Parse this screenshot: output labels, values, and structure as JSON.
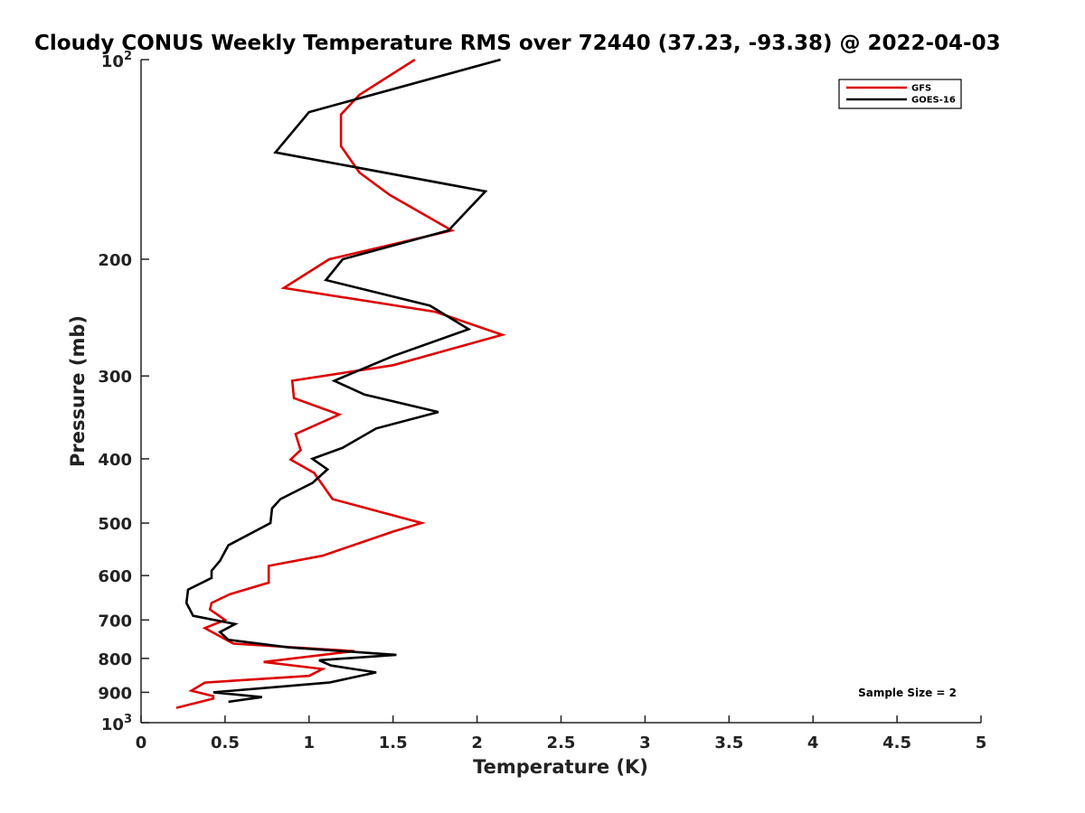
{
  "chart_data": {
    "type": "line",
    "title": "Cloudy CONUS Weekly Temperature RMS over 72440 (37.23, -93.38) @ 2022-04-03",
    "xlabel": "Temperature (K)",
    "ylabel": "Pressure (mb)",
    "xlim": [
      0,
      5
    ],
    "ylim": [
      1000,
      100
    ],
    "y_scale": "log",
    "y_reversed": true,
    "x_ticks": [
      0,
      0.5,
      1,
      1.5,
      2,
      2.5,
      3,
      3.5,
      4,
      4.5,
      5
    ],
    "x_tick_labels": [
      "0",
      "0.5",
      "1",
      "1.5",
      "2",
      "2.5",
      "3",
      "3.5",
      "4",
      "4.5",
      "5"
    ],
    "y_ticks": [
      200,
      300,
      400,
      500,
      600,
      700,
      800,
      900
    ],
    "y_tick_labels": [
      "200",
      "300",
      "400",
      "500",
      "600",
      "700",
      "800",
      "900"
    ],
    "y_exp_ticks": [
      {
        "value": 100,
        "base": "10",
        "exp": "2"
      },
      {
        "value": 1000,
        "base": "10",
        "exp": "3"
      }
    ],
    "grid": false,
    "legend_position": "top-right",
    "annotation": "Sample Size = 2",
    "series": [
      {
        "name": "GFS",
        "color": "#dd0000",
        "points": [
          [
            1.63,
            100
          ],
          [
            1.3,
            113
          ],
          [
            1.19,
            121
          ],
          [
            1.19,
            135
          ],
          [
            1.3,
            148
          ],
          [
            1.48,
            160
          ],
          [
            1.85,
            181
          ],
          [
            1.12,
            200
          ],
          [
            0.85,
            221
          ],
          [
            1.75,
            240
          ],
          [
            2.15,
            260
          ],
          [
            1.5,
            289
          ],
          [
            0.9,
            305
          ],
          [
            0.91,
            324
          ],
          [
            1.18,
            343
          ],
          [
            0.92,
            367
          ],
          [
            0.95,
            388
          ],
          [
            0.89,
            401
          ],
          [
            1.03,
            420
          ],
          [
            1.14,
            460
          ],
          [
            1.67,
            500
          ],
          [
            1.5,
            515
          ],
          [
            1.08,
            560
          ],
          [
            0.76,
            580
          ],
          [
            0.76,
            615
          ],
          [
            0.53,
            640
          ],
          [
            0.42,
            660
          ],
          [
            0.41,
            675
          ],
          [
            0.5,
            700
          ],
          [
            0.38,
            720
          ],
          [
            0.55,
            760
          ],
          [
            1.27,
            780
          ],
          [
            0.73,
            810
          ],
          [
            1.08,
            830
          ],
          [
            1.0,
            850
          ],
          [
            0.38,
            870
          ],
          [
            0.3,
            895
          ],
          [
            0.43,
            912
          ],
          [
            0.43,
            920
          ],
          [
            0.21,
            950
          ]
        ]
      },
      {
        "name": "GOES-16",
        "color": "#000000",
        "points": [
          [
            2.14,
            100
          ],
          [
            1.0,
            120
          ],
          [
            0.8,
            138
          ],
          [
            2.05,
            158
          ],
          [
            1.83,
            181
          ],
          [
            1.2,
            200
          ],
          [
            1.1,
            215
          ],
          [
            1.72,
            235
          ],
          [
            1.95,
            255
          ],
          [
            1.5,
            280
          ],
          [
            1.15,
            305
          ],
          [
            1.33,
            320
          ],
          [
            1.77,
            340
          ],
          [
            1.4,
            360
          ],
          [
            1.2,
            385
          ],
          [
            1.02,
            400
          ],
          [
            1.11,
            415
          ],
          [
            1.02,
            435
          ],
          [
            0.83,
            460
          ],
          [
            0.78,
            475
          ],
          [
            0.77,
            500
          ],
          [
            0.52,
            540
          ],
          [
            0.47,
            570
          ],
          [
            0.42,
            590
          ],
          [
            0.42,
            605
          ],
          [
            0.28,
            630
          ],
          [
            0.27,
            660
          ],
          [
            0.31,
            690
          ],
          [
            0.56,
            710
          ],
          [
            0.47,
            730
          ],
          [
            0.52,
            750
          ],
          [
            0.88,
            770
          ],
          [
            1.52,
            790
          ],
          [
            1.06,
            805
          ],
          [
            1.13,
            820
          ],
          [
            1.4,
            840
          ],
          [
            1.12,
            870
          ],
          [
            0.43,
            900
          ],
          [
            0.72,
            915
          ],
          [
            0.52,
            930
          ]
        ]
      }
    ]
  }
}
